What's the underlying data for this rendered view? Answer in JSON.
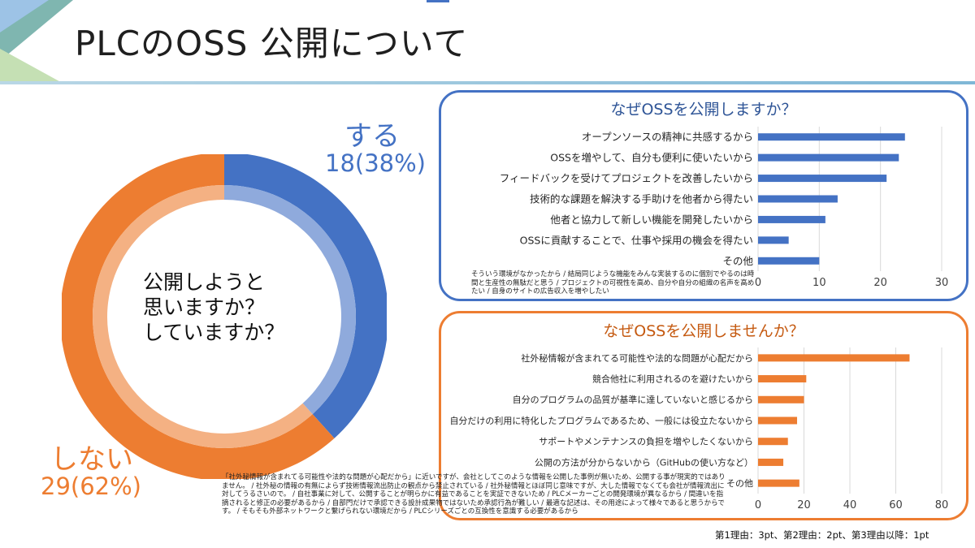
{
  "page": {
    "title": "PLCのOSS 公開について",
    "score_note": "第1理由：3pt、第2理由：2pt、第3理由以降：1pt"
  },
  "colors": {
    "yes": "#4472c4",
    "no": "#ed7d31",
    "yes_inner": "#8faadc",
    "no_inner": "#f4b183"
  },
  "donut": {
    "center_text": [
      "公開しようと",
      "思いますか？",
      "していますか？"
    ],
    "yes_label": "する",
    "yes_count": "18(38%)",
    "no_label": "しない",
    "no_count": "29(62%)"
  },
  "chart_data": [
    {
      "type": "pie",
      "variant": "donut",
      "categories": [
        "する",
        "しない"
      ],
      "values": [
        18,
        29
      ],
      "percentages": [
        38,
        62
      ]
    },
    {
      "type": "bar",
      "orientation": "horizontal",
      "title": "なぜOSSを公開しますか？",
      "categories": [
        "オープンソースの精神に共感するから",
        "OSSを増やして、自分も便利に使いたいから",
        "フィードバックを受けてプロジェクトを改善したいから",
        "技術的な課題を解決する手助けを他者から得たい",
        "他者と協力して新しい機能を開発したいから",
        "OSSに貢献することで、仕事や採用の機会を得たい",
        "その他"
      ],
      "values": [
        24,
        23,
        21,
        13,
        11,
        5,
        10
      ],
      "xlim": [
        0,
        30
      ],
      "xticks": [
        0,
        10,
        20,
        30
      ],
      "grid": true,
      "note": "そういう環境がなかったから / 結局同じような機能をみんな実装するのに個別でやるのは時間と生産性の無駄だと思う / プロジェクトの可視性を高め、自分や自分の組織の名声を高めたい / 自身のサイトの広告収入を増やしたい"
    },
    {
      "type": "bar",
      "orientation": "horizontal",
      "title": "なぜOSSを公開しませんか？",
      "categories": [
        "社外秘情報が含まれてる可能性や法的な問題が心配だから",
        "競合他社に利用されるのを避けたいから",
        "自分のプログラムの品質が基準に達していないと感じるから",
        "自分だけの利用に特化したプログラムであるため、一般には役立たないから",
        "サポートやメンテナンスの負担を増やしたくないから",
        "公開の方法が分からないから（GitHubの使い方など）",
        "その他"
      ],
      "values": [
        66,
        21,
        20,
        17,
        13,
        11,
        18
      ],
      "xlim": [
        0,
        80
      ],
      "xticks": [
        0,
        20,
        40,
        60,
        80
      ],
      "grid": true,
      "note": "「社外秘情報が含まれてる可能性や法的な問題が心配だから」に近いですが、会社としてこのような情報を公開した事例が無いため、公開する事が現実的ではありません。 / 社外秘の情報の有無によらず技術情報流出防止の観点から禁止されている / 社外秘情報とほぼ同じ意味ですが、大した情報でなくても会社が情報流出に対してうるさいので。 / 自社事業に対して、公開することが明らかに有益であることを実証できないため / PLCメーカーごとの開発環境が異なるから / 間違いを指摘されると修正の必要があるから / 自部門だけで承認できる設計成果物ではないため承認行為が難しい / 最適な記述は、その用途によって様々であると思うからです。 / そもそも外部ネットワークと繋げられない環境だから / PLCシリーズごとの互換性を意識する必要があるから"
    }
  ]
}
